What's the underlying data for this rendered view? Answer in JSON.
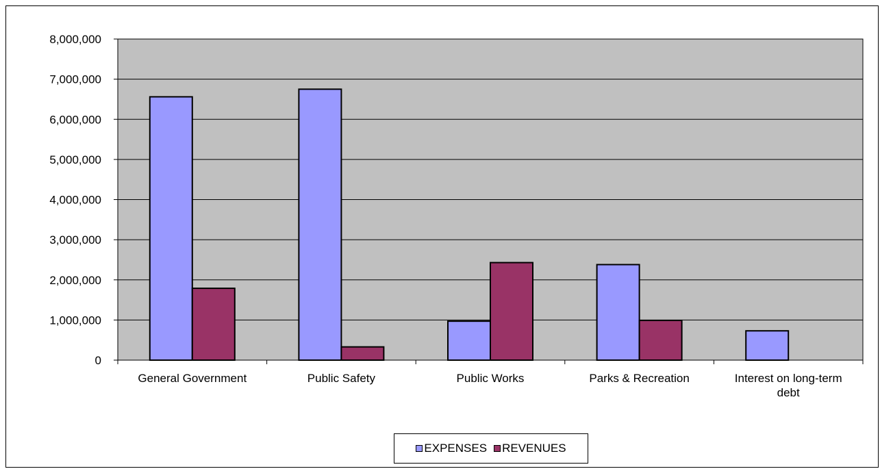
{
  "chart_data": {
    "type": "bar",
    "title": "",
    "xlabel": "",
    "ylabel": "",
    "categories": [
      [
        "General Government"
      ],
      [
        "Public Safety"
      ],
      [
        "Public Works"
      ],
      [
        "Parks & Recreation"
      ],
      [
        "Interest on long-term",
        "debt"
      ]
    ],
    "series": [
      {
        "name": "EXPENSES",
        "color": "#9999ff",
        "values": [
          6560000,
          6750000,
          970000,
          2380000,
          730000
        ]
      },
      {
        "name": "REVENUES",
        "color": "#993366",
        "values": [
          1790000,
          330000,
          2430000,
          990000,
          0
        ]
      }
    ],
    "ylim": [
      0,
      8000000
    ],
    "yticks": [
      "0",
      "1,000,000",
      "2,000,000",
      "3,000,000",
      "4,000,000",
      "5,000,000",
      "6,000,000",
      "7,000,000",
      "8,000,000"
    ],
    "grid": true,
    "plot_background": "#c0c0c0",
    "legend_position": "bottom"
  }
}
